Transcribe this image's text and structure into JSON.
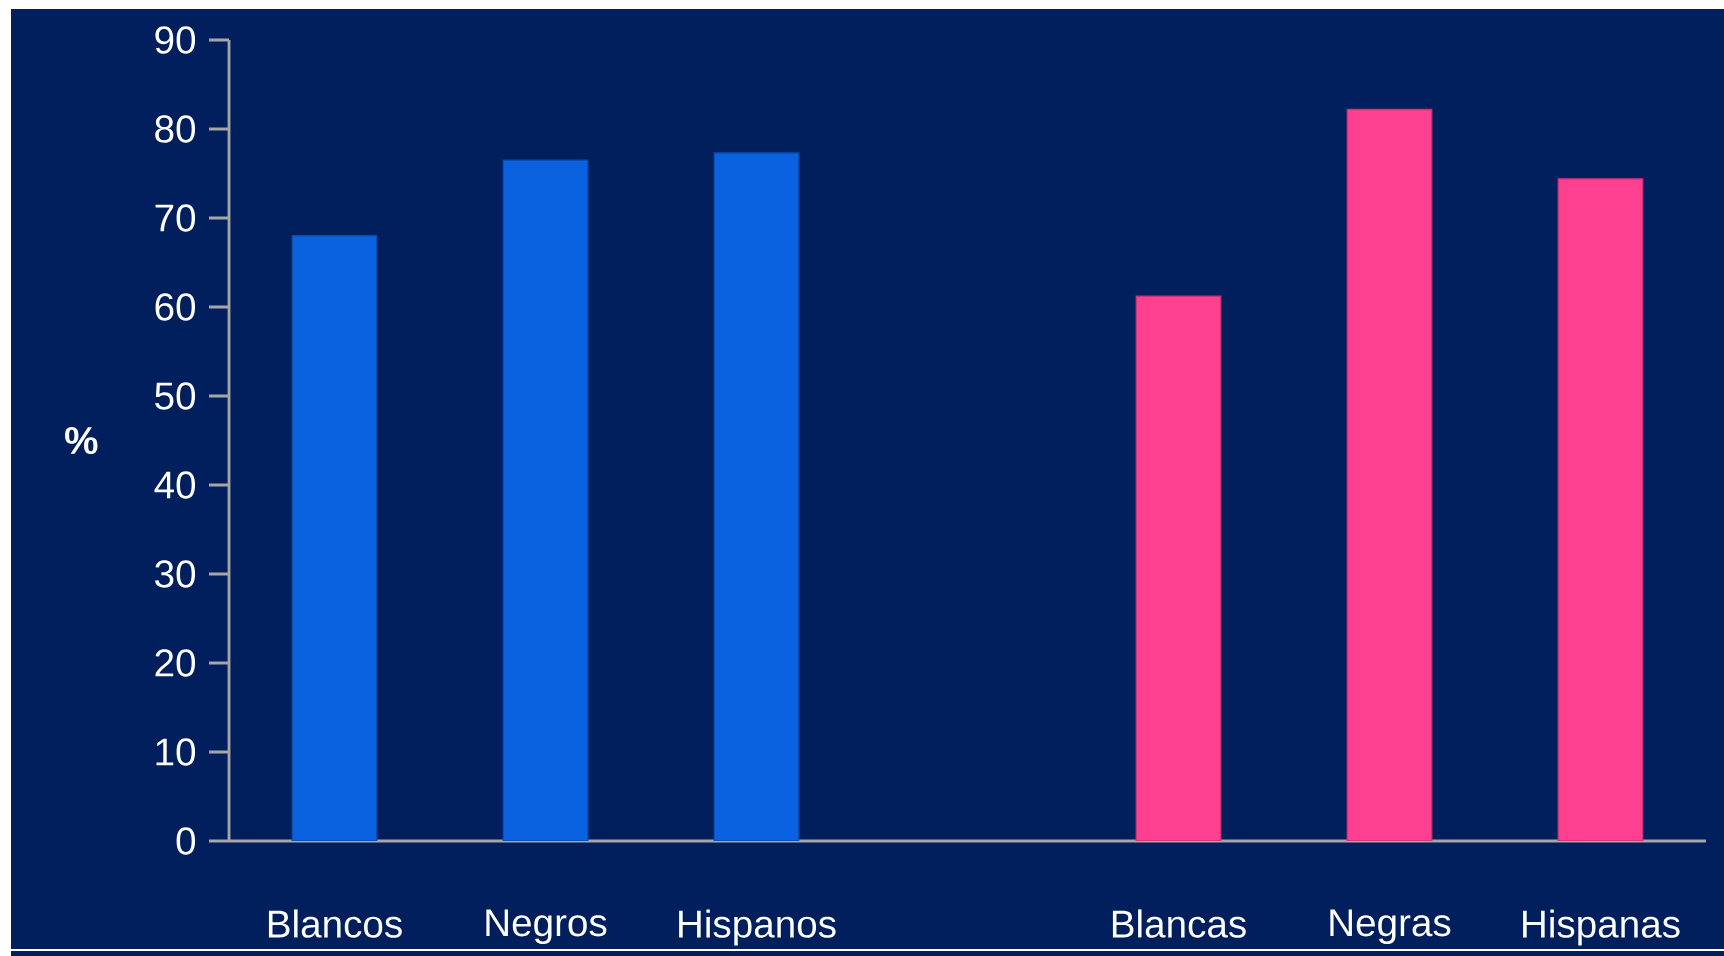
{
  "chart_data": {
    "type": "bar",
    "ylabel": "%",
    "categories": [
      "Blancos",
      "Negros",
      "Hispanos",
      null,
      "Blancas",
      "Negras",
      "Hispanas"
    ],
    "values": [
      68.0,
      76.5,
      77.3,
      null,
      61.2,
      82.2,
      74.4
    ],
    "colors": [
      "#0a62e0",
      "#0a62e0",
      "#0a62e0",
      null,
      "#ff4090",
      "#ff4090",
      "#ff4090"
    ],
    "ylim": [
      0,
      90
    ],
    "yticks": [
      0,
      10,
      20,
      30,
      40,
      50,
      60,
      70,
      80,
      90
    ],
    "grid": false
  }
}
